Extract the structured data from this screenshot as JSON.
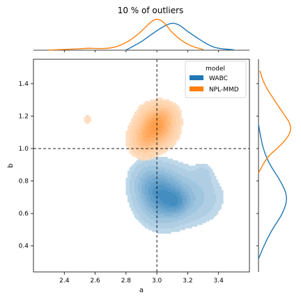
{
  "chart_data": {
    "type": "kde-joint",
    "title": "10 % of outliers",
    "xlabel": "a",
    "ylabel": "b",
    "xlim": [
      2.2,
      3.6
    ],
    "ylim": [
      0.24,
      1.55
    ],
    "x_ticks": [
      2.4,
      2.6,
      2.8,
      3.0,
      3.2,
      3.4
    ],
    "x_tick_labels": [
      "2.4",
      "2.6",
      "2.8",
      "3.0",
      "3.2",
      "3.4"
    ],
    "y_ticks": [
      0.4,
      0.6,
      0.8,
      1.0,
      1.2,
      1.4
    ],
    "y_tick_labels": [
      "0.4",
      "0.6",
      "0.8",
      "1.0",
      "1.2",
      "1.4"
    ],
    "reference_lines": {
      "x": 3.0,
      "y": 1.0,
      "style": "dashed"
    },
    "legend": {
      "title": "model",
      "placement": "top-right",
      "entries": [
        {
          "name": "WABC",
          "color": "#1f77b4"
        },
        {
          "name": "NPL-MMD",
          "color": "#ff7f0e"
        }
      ]
    },
    "series": [
      {
        "name": "WABC",
        "color": "#1f77b4",
        "joint_components": [
          {
            "mean": [
              3.03,
              0.71
            ],
            "sd": [
              0.09,
              0.1
            ],
            "weight": 0.7
          },
          {
            "mean": [
              3.13,
              0.67
            ],
            "sd": [
              0.05,
              0.05
            ],
            "weight": 0.3
          },
          {
            "mean": [
              3.22,
              0.7
            ],
            "sd": [
              0.12,
              0.1
            ],
            "weight": 0.25
          },
          {
            "mean": [
              2.93,
              0.8
            ],
            "sd": [
              0.07,
              0.08
            ],
            "weight": 0.2
          },
          {
            "mean": [
              3.3,
              0.85
            ],
            "sd": [
              0.04,
              0.04
            ],
            "weight": 0.08
          },
          {
            "mean": [
              2.89,
              0.45
            ],
            "sd": [
              0.015,
              0.015
            ],
            "weight": 0.01
          }
        ],
        "marginal_x": [
          [
            2.8,
            0.002
          ],
          [
            2.9,
            0.25
          ],
          [
            2.95,
            0.42
          ],
          [
            3.0,
            0.58
          ],
          [
            3.05,
            0.72
          ],
          [
            3.1,
            0.82
          ],
          [
            3.15,
            0.74
          ],
          [
            3.2,
            0.55
          ],
          [
            3.25,
            0.4
          ],
          [
            3.3,
            0.25
          ],
          [
            3.35,
            0.12
          ],
          [
            3.4,
            0.05
          ],
          [
            3.5,
            0.01
          ]
        ],
        "marginal_y": [
          [
            0.32,
            0.0
          ],
          [
            0.4,
            0.12
          ],
          [
            0.5,
            0.3
          ],
          [
            0.6,
            0.55
          ],
          [
            0.7,
            0.66
          ],
          [
            0.8,
            0.5
          ],
          [
            0.9,
            0.25
          ],
          [
            1.0,
            0.1
          ],
          [
            1.1,
            0.03
          ],
          [
            1.15,
            0.0
          ]
        ]
      },
      {
        "name": "NPL-MMD",
        "color": "#ff7f0e",
        "joint_components": [
          {
            "mean": [
              3.0,
              1.14
            ],
            "sd": [
              0.07,
              0.07
            ],
            "weight": 0.75
          },
          {
            "mean": [
              2.92,
              1.05
            ],
            "sd": [
              0.06,
              0.06
            ],
            "weight": 0.35
          },
          {
            "mean": [
              3.06,
              1.22
            ],
            "sd": [
              0.05,
              0.04
            ],
            "weight": 0.15
          },
          {
            "mean": [
              2.55,
              1.18
            ],
            "sd": [
              0.04,
              0.04
            ],
            "weight": 0.06
          }
        ],
        "marginal_x": [
          [
            2.3,
            0.005
          ],
          [
            2.5,
            0.04
          ],
          [
            2.55,
            0.06
          ],
          [
            2.6,
            0.05
          ],
          [
            2.7,
            0.05
          ],
          [
            2.8,
            0.2
          ],
          [
            2.9,
            0.55
          ],
          [
            2.95,
            0.8
          ],
          [
            3.0,
            0.95
          ],
          [
            3.05,
            0.82
          ],
          [
            3.1,
            0.5
          ],
          [
            3.2,
            0.15
          ],
          [
            3.3,
            0.02
          ]
        ],
        "marginal_y": [
          [
            0.85,
            0.0
          ],
          [
            0.95,
            0.2
          ],
          [
            1.0,
            0.42
          ],
          [
            1.05,
            0.6
          ],
          [
            1.1,
            0.72
          ],
          [
            1.15,
            0.72
          ],
          [
            1.2,
            0.6
          ],
          [
            1.3,
            0.35
          ],
          [
            1.4,
            0.12
          ],
          [
            1.48,
            0.03
          ]
        ]
      }
    ]
  }
}
